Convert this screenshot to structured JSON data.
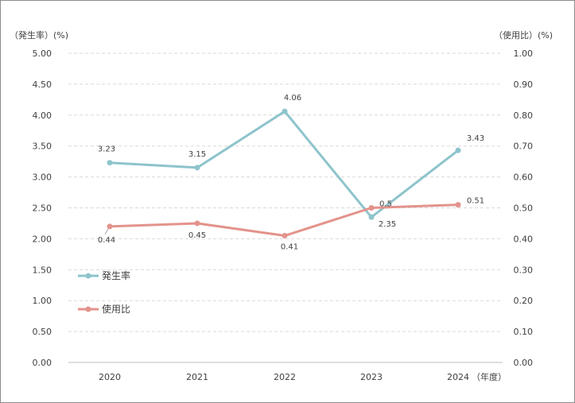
{
  "chart_data": {
    "type": "line",
    "x": [
      "2020",
      "2021",
      "2022",
      "2023",
      "2024"
    ],
    "x_unit": "（年度）",
    "left_axis_label": "（発生率）(%)",
    "right_axis_label": "（使用比）(%)",
    "left_ylim": [
      0,
      5
    ],
    "right_ylim": [
      0,
      1
    ],
    "left_ticks": [
      "0.00",
      "0.50",
      "1.00",
      "1.50",
      "2.00",
      "2.50",
      "3.00",
      "3.50",
      "4.00",
      "4.50",
      "5.00"
    ],
    "right_ticks": [
      "0.00",
      "0.10",
      "0.20",
      "0.30",
      "0.40",
      "0.50",
      "0.60",
      "0.70",
      "0.80",
      "0.90",
      "1.00"
    ],
    "grid": true,
    "legend_position": "left-inside",
    "series": [
      {
        "name": "発生率",
        "axis": "left",
        "color": "#8ec4cc",
        "values": [
          3.23,
          3.15,
          4.06,
          2.35,
          3.43
        ],
        "labels": [
          "3.23",
          "3.15",
          "4.06",
          "2.35",
          "3.43"
        ]
      },
      {
        "name": "使用比",
        "axis": "right",
        "color": "#e3938c",
        "values": [
          0.44,
          0.45,
          0.41,
          0.5,
          0.51
        ],
        "labels": [
          "0.44",
          "0.45",
          "0.41",
          "0.5",
          "0.51"
        ]
      }
    ]
  }
}
